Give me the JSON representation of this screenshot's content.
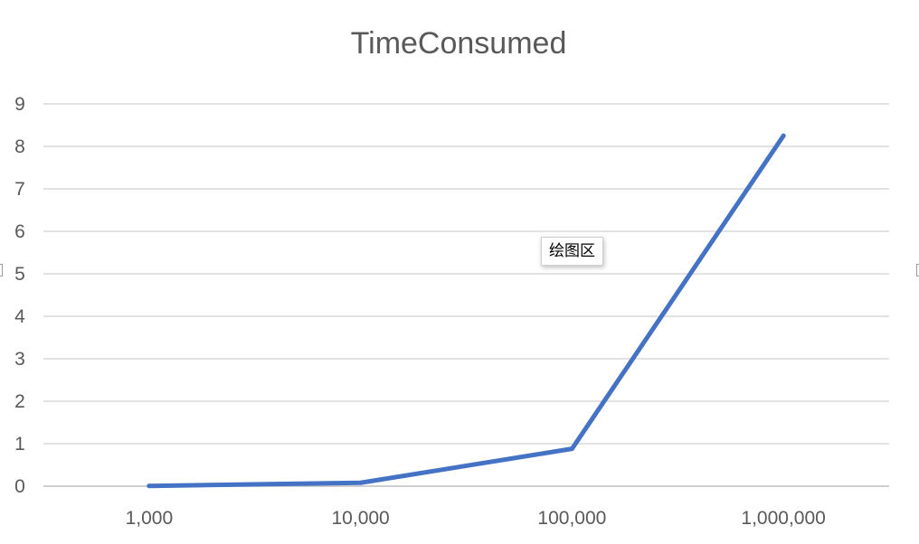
{
  "tooltip": "绘图区",
  "chart_data": {
    "type": "line",
    "title": "TimeConsumed",
    "xlabel": "",
    "ylabel": "",
    "categories": [
      "1,000",
      "10,000",
      "100,000",
      "1,000,000"
    ],
    "series": [
      {
        "values": [
          0.005,
          0.08,
          0.88,
          8.25
        ],
        "color": "#4472C4"
      }
    ],
    "ylim": [
      0,
      9
    ],
    "yticks": [
      0,
      1,
      2,
      3,
      4,
      5,
      6,
      7,
      8,
      9
    ],
    "grid": true,
    "legend": "none"
  }
}
